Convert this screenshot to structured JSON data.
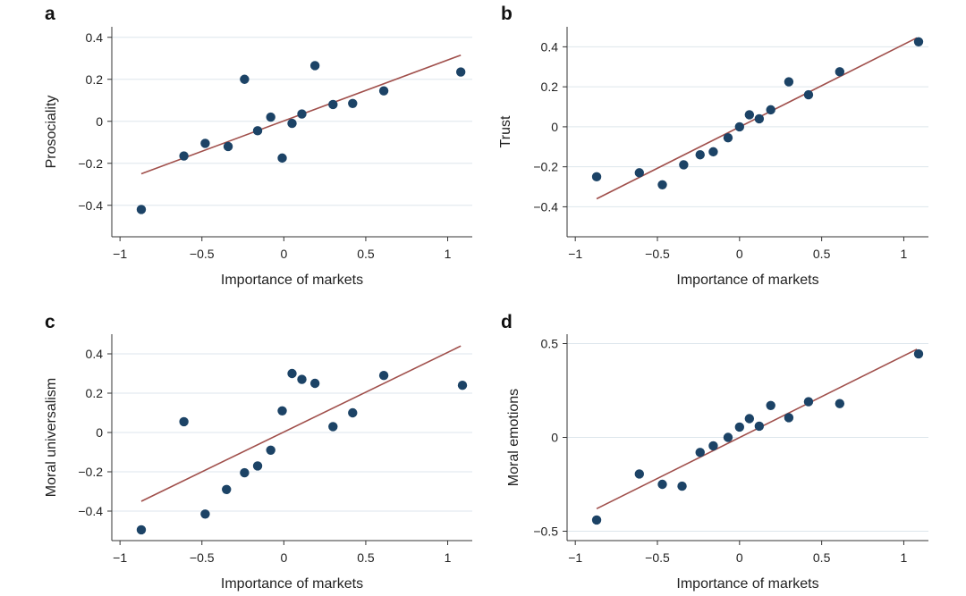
{
  "colors": {
    "point": "#1c4366",
    "fit_line": "#a04f4b",
    "grid": "#dde6ec",
    "axis": "#333333",
    "text": "#222222"
  },
  "chart_data": [
    {
      "panel_label": "a",
      "type": "scatter",
      "xlabel": "Importance of markets",
      "ylabel": "Prosociality",
      "xlim": [
        -1.05,
        1.15
      ],
      "ylim": [
        -0.55,
        0.45
      ],
      "x_ticks": [
        -1,
        -0.5,
        0,
        0.5,
        1
      ],
      "x_tick_labels": [
        "−1",
        "−0.5",
        "0",
        "0.5",
        "1"
      ],
      "y_ticks": [
        -0.4,
        -0.2,
        0,
        0.2,
        0.4
      ],
      "y_tick_labels": [
        "−0.4",
        "−0.2",
        "0",
        "0.2",
        "0.4"
      ],
      "grid": "horizontal",
      "points": [
        {
          "x": -0.87,
          "y": -0.42
        },
        {
          "x": -0.61,
          "y": -0.165
        },
        {
          "x": -0.48,
          "y": -0.105
        },
        {
          "x": -0.34,
          "y": -0.12
        },
        {
          "x": -0.24,
          "y": 0.2
        },
        {
          "x": -0.16,
          "y": -0.045
        },
        {
          "x": -0.08,
          "y": 0.02
        },
        {
          "x": -0.01,
          "y": -0.175
        },
        {
          "x": 0.05,
          "y": -0.01
        },
        {
          "x": 0.11,
          "y": 0.035
        },
        {
          "x": 0.19,
          "y": 0.265
        },
        {
          "x": 0.3,
          "y": 0.08
        },
        {
          "x": 0.42,
          "y": 0.085
        },
        {
          "x": 0.61,
          "y": 0.145
        },
        {
          "x": 1.08,
          "y": 0.235
        }
      ],
      "fit_line": [
        {
          "x": -0.87,
          "y": -0.25
        },
        {
          "x": 1.08,
          "y": 0.315
        }
      ]
    },
    {
      "panel_label": "b",
      "type": "scatter",
      "xlabel": "Importance of markets",
      "ylabel": "Trust",
      "xlim": [
        -1.05,
        1.15
      ],
      "ylim": [
        -0.55,
        0.5
      ],
      "x_ticks": [
        -1,
        -0.5,
        0,
        0.5,
        1
      ],
      "x_tick_labels": [
        "−1",
        "−0.5",
        "0",
        "0.5",
        "1"
      ],
      "y_ticks": [
        -0.4,
        -0.2,
        0,
        0.2,
        0.4
      ],
      "y_tick_labels": [
        "−0.4",
        "−0.2",
        "0",
        "0.2",
        "0.4"
      ],
      "grid": "horizontal",
      "points": [
        {
          "x": -0.87,
          "y": -0.25
        },
        {
          "x": -0.61,
          "y": -0.23
        },
        {
          "x": -0.47,
          "y": -0.29
        },
        {
          "x": -0.34,
          "y": -0.19
        },
        {
          "x": -0.24,
          "y": -0.14
        },
        {
          "x": -0.16,
          "y": -0.125
        },
        {
          "x": -0.07,
          "y": -0.055
        },
        {
          "x": 0,
          "y": 0
        },
        {
          "x": 0.06,
          "y": 0.06
        },
        {
          "x": 0.12,
          "y": 0.04
        },
        {
          "x": 0.19,
          "y": 0.085
        },
        {
          "x": 0.3,
          "y": 0.225
        },
        {
          "x": 0.42,
          "y": 0.16
        },
        {
          "x": 0.61,
          "y": 0.275
        },
        {
          "x": 1.09,
          "y": 0.425
        }
      ],
      "fit_line": [
        {
          "x": -0.87,
          "y": -0.36
        },
        {
          "x": 1.08,
          "y": 0.445
        }
      ]
    },
    {
      "panel_label": "c",
      "type": "scatter",
      "xlabel": "Importance of markets",
      "ylabel": "Moral universalism",
      "xlim": [
        -1.05,
        1.15
      ],
      "ylim": [
        -0.55,
        0.5
      ],
      "x_ticks": [
        -1,
        -0.5,
        0,
        0.5,
        1
      ],
      "x_tick_labels": [
        "−1",
        "−0.5",
        "0",
        "0.5",
        "1"
      ],
      "y_ticks": [
        -0.4,
        -0.2,
        0,
        0.2,
        0.4
      ],
      "y_tick_labels": [
        "−0.4",
        "−0.2",
        "0",
        "0.2",
        "0.4"
      ],
      "grid": "horizontal",
      "points": [
        {
          "x": -0.87,
          "y": -0.495
        },
        {
          "x": -0.61,
          "y": 0.055
        },
        {
          "x": -0.48,
          "y": -0.415
        },
        {
          "x": -0.35,
          "y": -0.29
        },
        {
          "x": -0.24,
          "y": -0.205
        },
        {
          "x": -0.16,
          "y": -0.17
        },
        {
          "x": -0.08,
          "y": -0.09
        },
        {
          "x": -0.01,
          "y": 0.11
        },
        {
          "x": 0.05,
          "y": 0.3
        },
        {
          "x": 0.11,
          "y": 0.27
        },
        {
          "x": 0.19,
          "y": 0.25
        },
        {
          "x": 0.3,
          "y": 0.03
        },
        {
          "x": 0.42,
          "y": 0.1
        },
        {
          "x": 0.61,
          "y": 0.29
        },
        {
          "x": 1.09,
          "y": 0.24
        }
      ],
      "fit_line": [
        {
          "x": -0.87,
          "y": -0.35
        },
        {
          "x": 1.08,
          "y": 0.44
        }
      ]
    },
    {
      "panel_label": "d",
      "type": "scatter",
      "xlabel": "Importance of markets",
      "ylabel": "Moral emotions",
      "xlim": [
        -1.05,
        1.15
      ],
      "ylim": [
        -0.55,
        0.55
      ],
      "x_ticks": [
        -1,
        -0.5,
        0,
        0.5,
        1
      ],
      "x_tick_labels": [
        "−1",
        "−0.5",
        "0",
        "0.5",
        "1"
      ],
      "y_ticks": [
        -0.5,
        0,
        0.5
      ],
      "y_tick_labels": [
        "−0.5",
        "0",
        "0.5"
      ],
      "grid": "horizontal",
      "points": [
        {
          "x": -0.87,
          "y": -0.44
        },
        {
          "x": -0.61,
          "y": -0.195
        },
        {
          "x": -0.47,
          "y": -0.25
        },
        {
          "x": -0.35,
          "y": -0.26
        },
        {
          "x": -0.24,
          "y": -0.08
        },
        {
          "x": -0.16,
          "y": -0.045
        },
        {
          "x": -0.07,
          "y": 0
        },
        {
          "x": 0,
          "y": 0.055
        },
        {
          "x": 0.06,
          "y": 0.1
        },
        {
          "x": 0.12,
          "y": 0.06
        },
        {
          "x": 0.19,
          "y": 0.17
        },
        {
          "x": 0.3,
          "y": 0.105
        },
        {
          "x": 0.42,
          "y": 0.19
        },
        {
          "x": 0.61,
          "y": 0.18
        },
        {
          "x": 1.09,
          "y": 0.445
        }
      ],
      "fit_line": [
        {
          "x": -0.87,
          "y": -0.38
        },
        {
          "x": 1.08,
          "y": 0.47
        }
      ]
    }
  ]
}
